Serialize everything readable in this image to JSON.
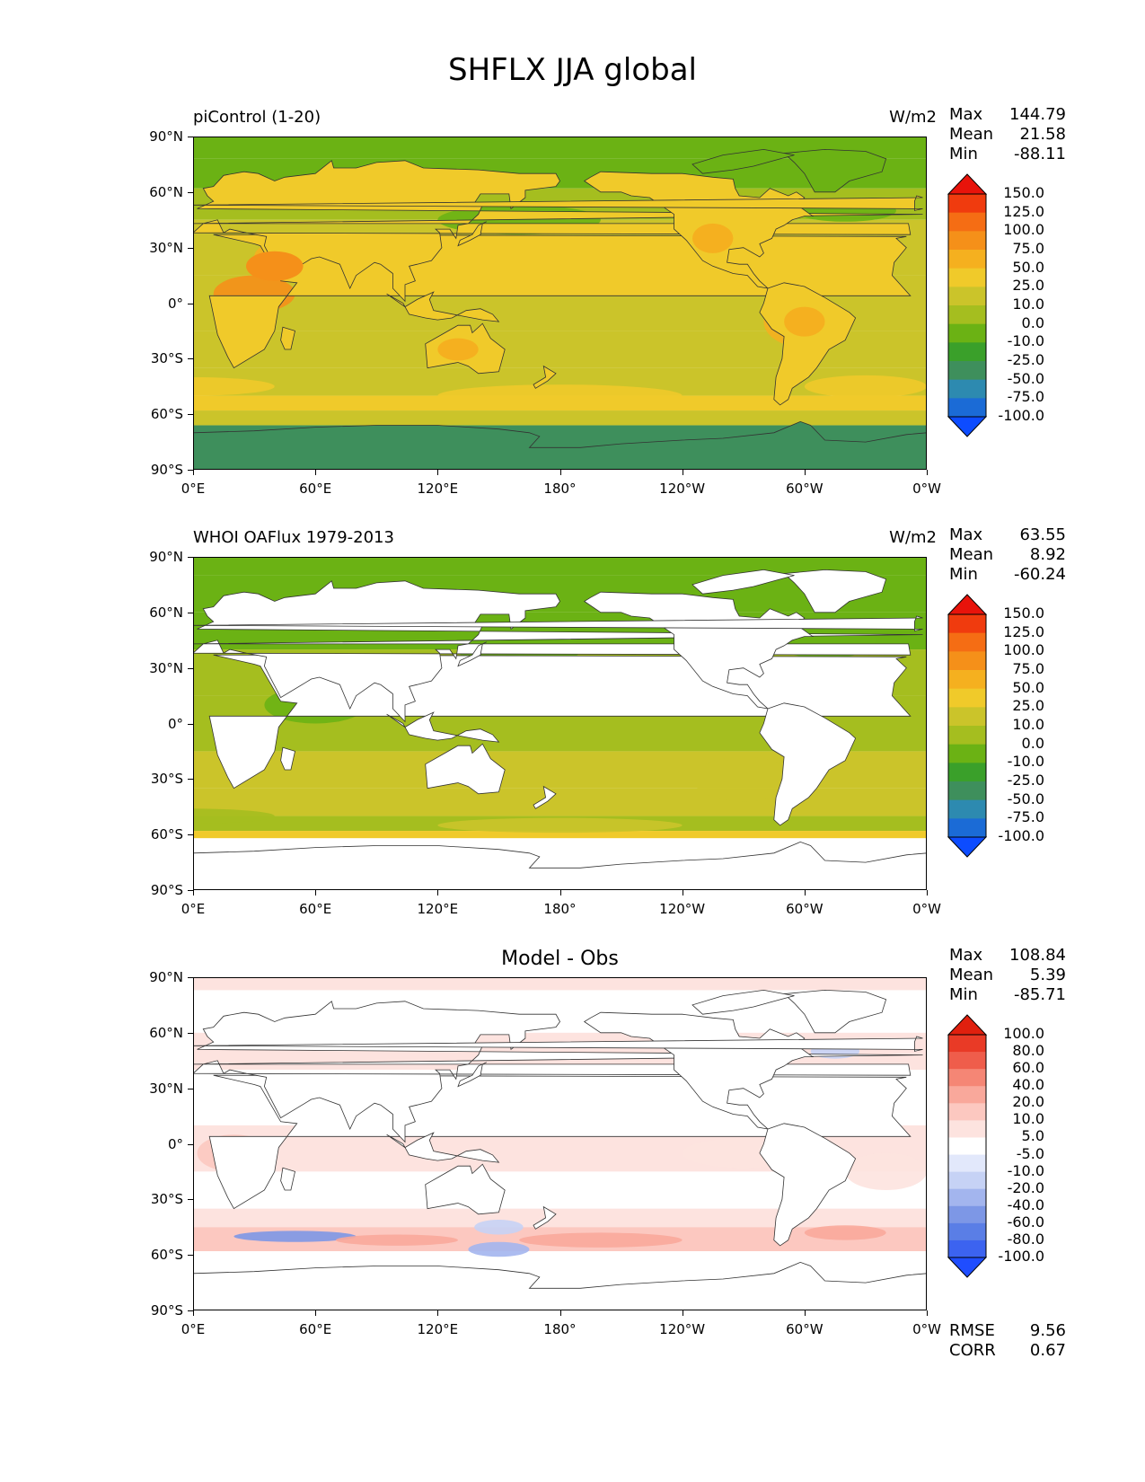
{
  "title": "SHFLX JJA global",
  "axes": {
    "yticks": [
      "90°N",
      "60°N",
      "30°N",
      "0°",
      "30°S",
      "60°S",
      "90°S"
    ],
    "xticks": [
      "0°E",
      "60°E",
      "120°E",
      "180°",
      "120°W",
      "60°W",
      "0°W"
    ]
  },
  "panels": [
    {
      "left_title": "piControl (1-20)",
      "right_title": "W/m2",
      "center_title": "",
      "stats": [
        {
          "k": "Max",
          "v": "144.79"
        },
        {
          "k": "Mean",
          "v": "21.58"
        },
        {
          "k": "Min",
          "v": "-88.11"
        }
      ]
    },
    {
      "left_title": "WHOI OAFlux 1979-2013",
      "right_title": "W/m2",
      "center_title": "",
      "stats": [
        {
          "k": "Max",
          "v": "63.55"
        },
        {
          "k": "Mean",
          "v": "8.92"
        },
        {
          "k": "Min",
          "v": "-60.24"
        }
      ]
    },
    {
      "left_title": "",
      "right_title": "",
      "center_title": "Model - Obs",
      "stats": [
        {
          "k": "Max",
          "v": "108.84"
        },
        {
          "k": "Mean",
          "v": "5.39"
        },
        {
          "k": "Min",
          "v": "-85.71"
        }
      ],
      "extra": [
        {
          "k": "RMSE",
          "v": "9.56"
        },
        {
          "k": "CORR",
          "v": "0.67"
        }
      ]
    }
  ],
  "chart_data": [
    {
      "type": "heatmap",
      "title": "piControl (1-20)",
      "units": "W/m2",
      "xlim": [
        0,
        360
      ],
      "ylim": [
        -90,
        90
      ],
      "levels": [
        "-100.0",
        "-75.0",
        "-50.0",
        "-25.0",
        "-10.0",
        "0.0",
        "10.0",
        "25.0",
        "50.0",
        "75.0",
        "100.0",
        "125.0",
        "150.0"
      ],
      "colors": [
        "#0d4cff",
        "#1b6bd6",
        "#2d8ab0",
        "#3e8f5c",
        "#3aa02a",
        "#6bb214",
        "#a5be1f",
        "#cbc42a",
        "#f0ca2a",
        "#f5b01f",
        "#f59019",
        "#f56d14",
        "#f03b0e",
        "#e8130b"
      ],
      "max": 144.79,
      "mean": 21.58,
      "min": -88.11
    },
    {
      "type": "heatmap",
      "title": "WHOI OAFlux 1979-2013",
      "units": "W/m2",
      "xlim": [
        0,
        360
      ],
      "ylim": [
        -90,
        90
      ],
      "levels": [
        "-100.0",
        "-75.0",
        "-50.0",
        "-25.0",
        "-10.0",
        "0.0",
        "10.0",
        "25.0",
        "50.0",
        "75.0",
        "100.0",
        "125.0",
        "150.0"
      ],
      "colors": [
        "#0d4cff",
        "#1b6bd6",
        "#2d8ab0",
        "#3e8f5c",
        "#3aa02a",
        "#6bb214",
        "#a5be1f",
        "#cbc42a",
        "#f0ca2a",
        "#f5b01f",
        "#f59019",
        "#f56d14",
        "#f03b0e",
        "#e8130b"
      ],
      "max": 63.55,
      "mean": 8.92,
      "min": -60.24
    },
    {
      "type": "heatmap",
      "title": "Model - Obs",
      "xlim": [
        0,
        360
      ],
      "ylim": [
        -90,
        90
      ],
      "levels": [
        "-100.0",
        "-80.0",
        "-60.0",
        "-40.0",
        "-20.0",
        "-10.0",
        "-5.0",
        "5.0",
        "10.0",
        "20.0",
        "40.0",
        "60.0",
        "80.0",
        "100.0"
      ],
      "colors": [
        "#1f4dff",
        "#3c63f0",
        "#5a7ee6",
        "#7d97e6",
        "#a3b5ee",
        "#c6d2f5",
        "#e2e8fb",
        "#ffffff",
        "#fde3df",
        "#fcc8c0",
        "#f9a89b",
        "#f58675",
        "#ef5d4b",
        "#e93a26",
        "#e0200e"
      ],
      "max": 108.84,
      "mean": 5.39,
      "min": -85.71,
      "rmse": 9.56,
      "corr": 0.67
    }
  ]
}
